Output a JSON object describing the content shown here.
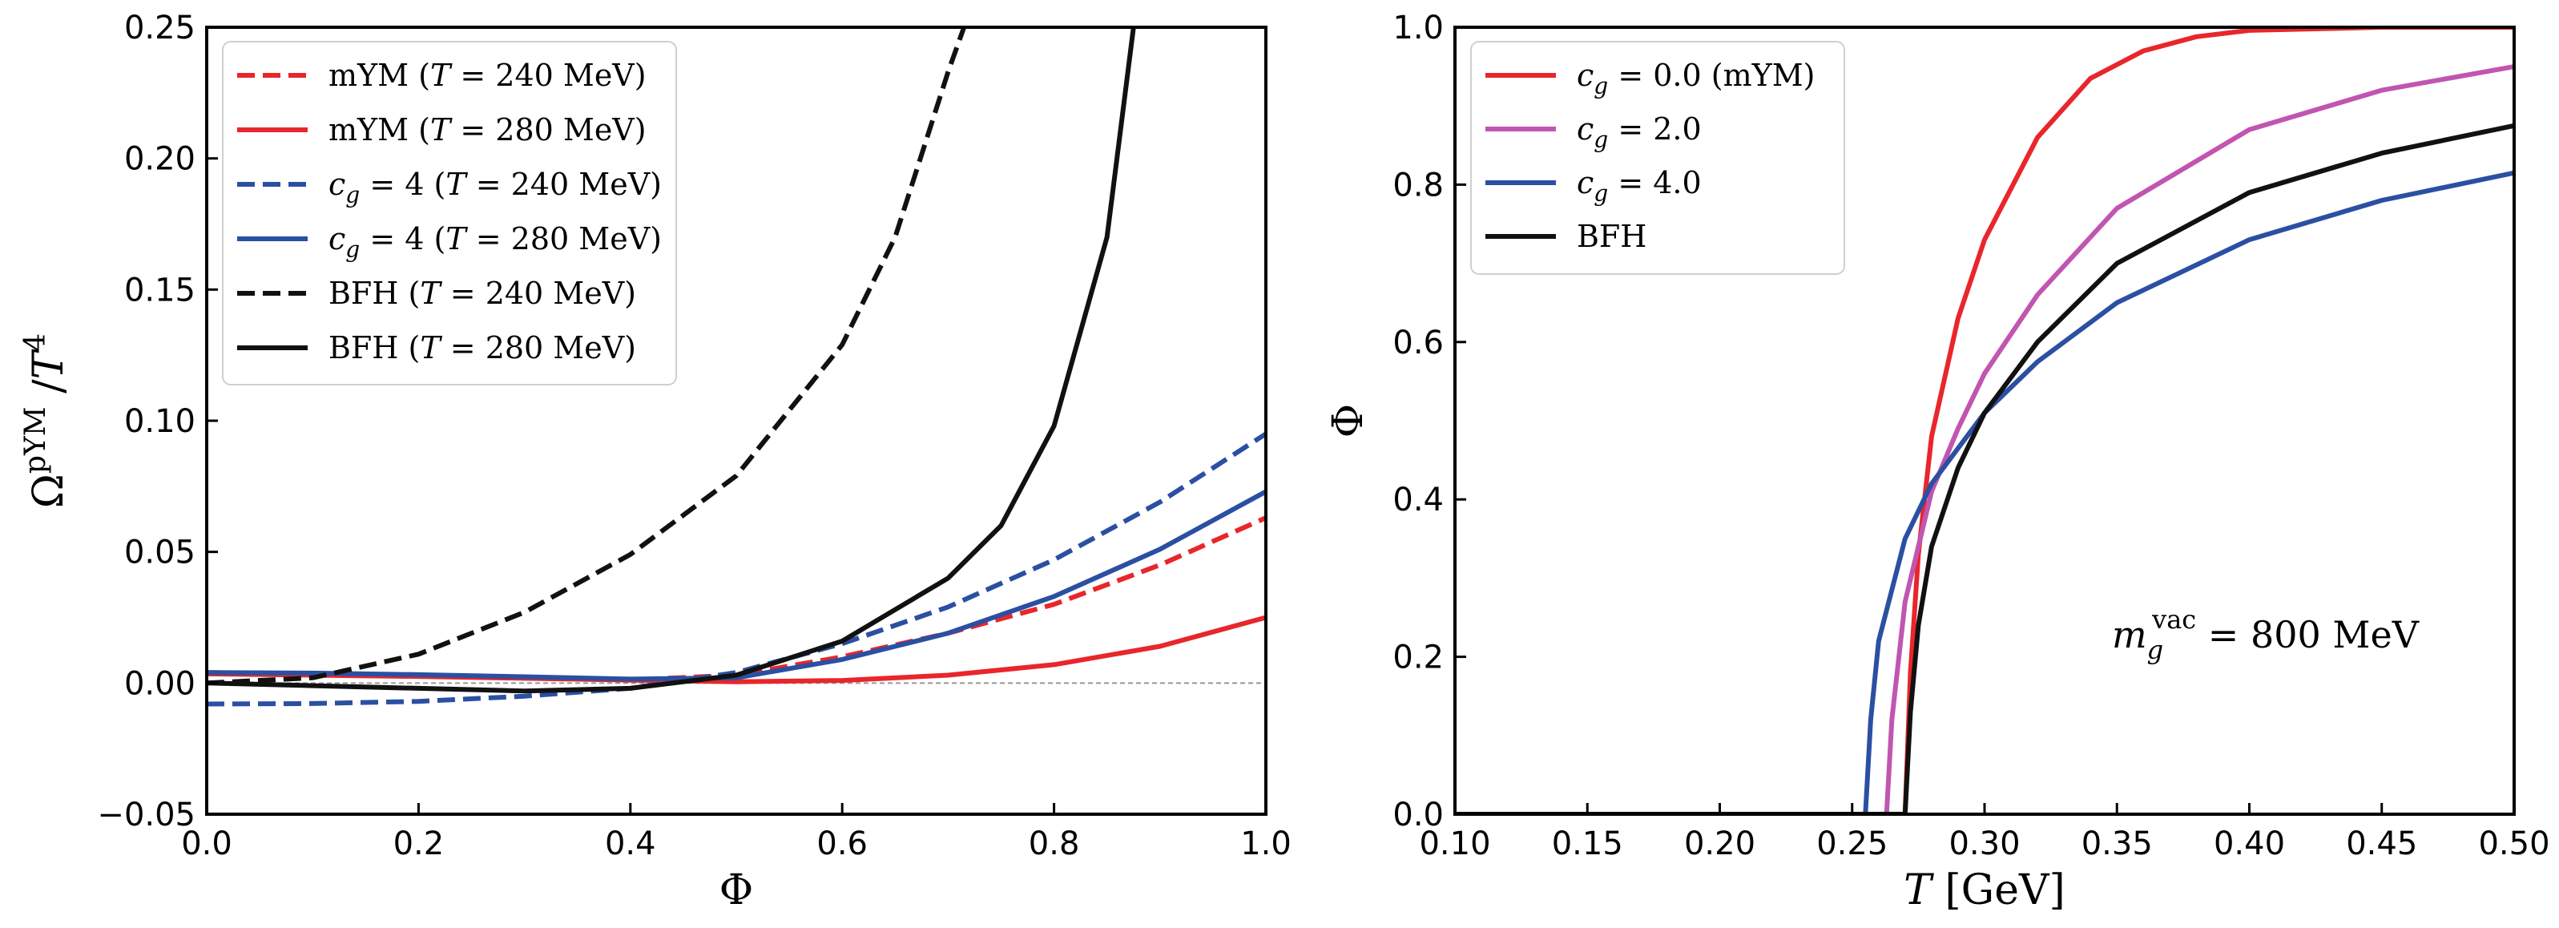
{
  "chart_data": [
    {
      "type": "line",
      "xlabel": "Φ",
      "ylabel": "Ω^pYM / T^4",
      "xlim": [
        0.0,
        1.0
      ],
      "ylim": [
        -0.05,
        0.25
      ],
      "xticks": [
        "0.0",
        "0.2",
        "0.4",
        "0.6",
        "0.8",
        "1.0"
      ],
      "yticks": [
        "−0.05",
        "0.00",
        "0.05",
        "0.10",
        "0.15",
        "0.20",
        "0.25"
      ],
      "reference_line": {
        "y": 0.0,
        "style": "dashed-gray"
      },
      "legend_position": "top-left",
      "series": [
        {
          "name": "mYM (T = 240 MeV)",
          "color": "#e8262b",
          "dash": "dashed",
          "x": [
            0.0,
            0.1,
            0.2,
            0.3,
            0.4,
            0.5,
            0.6,
            0.7,
            0.8,
            0.9,
            1.0
          ],
          "y": [
            0.004,
            0.0035,
            0.0028,
            0.002,
            0.0012,
            0.003,
            0.01,
            0.019,
            0.03,
            0.045,
            0.063
          ]
        },
        {
          "name": "mYM (T = 280 MeV)",
          "color": "#e8262b",
          "dash": "solid",
          "x": [
            0.0,
            0.1,
            0.2,
            0.3,
            0.4,
            0.5,
            0.6,
            0.7,
            0.8,
            0.9,
            1.0
          ],
          "y": [
            0.0035,
            0.003,
            0.0025,
            0.0018,
            0.0011,
            0.0005,
            0.001,
            0.003,
            0.007,
            0.014,
            0.025
          ]
        },
        {
          "name": "c_g = 4 (T = 240 MeV)",
          "color": "#2b4fa2",
          "dash": "dashed",
          "x": [
            0.0,
            0.1,
            0.2,
            0.3,
            0.4,
            0.5,
            0.6,
            0.7,
            0.8,
            0.9,
            1.0
          ],
          "y": [
            -0.008,
            -0.0078,
            -0.007,
            -0.005,
            -0.002,
            0.004,
            0.015,
            0.029,
            0.047,
            0.069,
            0.095
          ]
        },
        {
          "name": "c_g = 4 (T = 280 MeV)",
          "color": "#2b4fa2",
          "dash": "solid",
          "x": [
            0.0,
            0.1,
            0.2,
            0.3,
            0.4,
            0.5,
            0.6,
            0.7,
            0.8,
            0.9,
            1.0
          ],
          "y": [
            0.004,
            0.0038,
            0.0032,
            0.0024,
            0.0015,
            0.002,
            0.009,
            0.019,
            0.033,
            0.051,
            0.073
          ]
        },
        {
          "name": "BFH (T = 240 MeV)",
          "color": "#111111",
          "dash": "dashed",
          "x": [
            0.0,
            0.1,
            0.2,
            0.3,
            0.4,
            0.5,
            0.6,
            0.65,
            0.7,
            0.715
          ],
          "y": [
            0.0,
            0.002,
            0.011,
            0.027,
            0.049,
            0.079,
            0.129,
            0.17,
            0.233,
            0.25
          ]
        },
        {
          "name": "BFH (T = 280 MeV)",
          "color": "#111111",
          "dash": "solid",
          "x": [
            0.0,
            0.1,
            0.2,
            0.3,
            0.4,
            0.5,
            0.6,
            0.7,
            0.75,
            0.8,
            0.85,
            0.875
          ],
          "y": [
            0.0,
            -0.001,
            -0.002,
            -0.003,
            -0.002,
            0.003,
            0.016,
            0.04,
            0.06,
            0.098,
            0.17,
            0.25
          ]
        }
      ]
    },
    {
      "type": "line",
      "xlabel": "T [GeV]",
      "ylabel": "Φ",
      "xlim": [
        0.1,
        0.5
      ],
      "ylim": [
        0.0,
        1.0
      ],
      "xticks": [
        "0.10",
        "0.15",
        "0.20",
        "0.25",
        "0.30",
        "0.35",
        "0.40",
        "0.45",
        "0.50"
      ],
      "yticks": [
        "0.0",
        "0.2",
        "0.4",
        "0.6",
        "0.8",
        "1.0"
      ],
      "legend_position": "top-left",
      "annotation": "m_g^vac = 800 MeV",
      "series": [
        {
          "name": "c_g = 0.0 (mYM)",
          "color": "#e8262b",
          "dash": "solid",
          "x": [
            0.1,
            0.27,
            0.272,
            0.275,
            0.28,
            0.29,
            0.3,
            0.32,
            0.34,
            0.36,
            0.38,
            0.4,
            0.45,
            0.5
          ],
          "y": [
            0.0,
            0.0,
            0.18,
            0.33,
            0.48,
            0.63,
            0.73,
            0.86,
            0.935,
            0.97,
            0.988,
            0.996,
            1.0,
            1.0
          ]
        },
        {
          "name": "c_g = 2.0",
          "color": "#c155b0",
          "dash": "solid",
          "x": [
            0.1,
            0.263,
            0.265,
            0.27,
            0.28,
            0.29,
            0.3,
            0.32,
            0.35,
            0.4,
            0.45,
            0.5
          ],
          "y": [
            0.0,
            0.0,
            0.12,
            0.27,
            0.41,
            0.49,
            0.56,
            0.66,
            0.77,
            0.87,
            0.92,
            0.95
          ]
        },
        {
          "name": "c_g = 4.0",
          "color": "#2b4fa2",
          "dash": "solid",
          "x": [
            0.1,
            0.255,
            0.257,
            0.26,
            0.27,
            0.28,
            0.3,
            0.32,
            0.35,
            0.4,
            0.45,
            0.5
          ],
          "y": [
            0.0,
            0.0,
            0.12,
            0.22,
            0.35,
            0.42,
            0.51,
            0.575,
            0.65,
            0.73,
            0.78,
            0.815
          ]
        },
        {
          "name": "BFH",
          "color": "#111111",
          "dash": "solid",
          "x": [
            0.1,
            0.27,
            0.272,
            0.275,
            0.28,
            0.29,
            0.3,
            0.32,
            0.35,
            0.4,
            0.45,
            0.5
          ],
          "y": [
            0.0,
            0.0,
            0.13,
            0.24,
            0.34,
            0.44,
            0.51,
            0.6,
            0.7,
            0.79,
            0.84,
            0.875
          ]
        }
      ]
    }
  ]
}
